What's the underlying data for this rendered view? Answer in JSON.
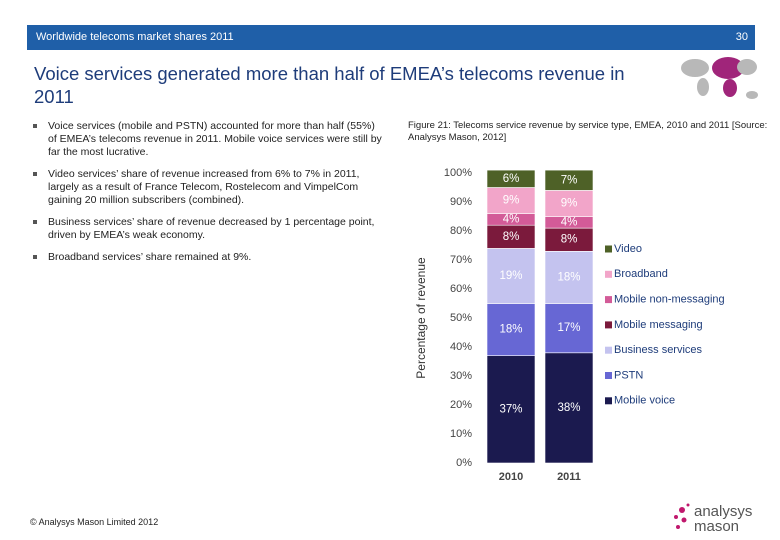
{
  "header": {
    "section": "Worldwide telecoms market shares 2011",
    "page_number": "30"
  },
  "title": "Voice services generated more than half of EMEA’s telecoms revenue in 2011",
  "bullets": [
    "Voice services (mobile and PSTN) accounted for more than half (55%) of EMEA’s telecoms revenue in 2011. Mobile voice services were still by far the most lucrative.",
    "Video services’ share of revenue increased from 6% to 7% in 2011, largely as a result of France Telecom, Rostelecom and VimpelCom gaining 20 million subscribers (combined).",
    "Business services’ share of revenue decreased by 1 percentage point, driven by EMEA’s weak economy.",
    "Broadband services’ share remained at 9%."
  ],
  "figure_caption": "Figure 21: Telecoms service revenue by service type, EMEA, 2010 and 2011 [Source: Analysys Mason, 2012]",
  "footer": "© Analysys Mason Limited 2012",
  "logo": {
    "line1": "analysys",
    "line2": "mason"
  },
  "chart_data": {
    "type": "stacked_bar",
    "ylabel": "Percentage of revenue",
    "categories": [
      "2010",
      "2011"
    ],
    "series": [
      {
        "name": "Mobile voice",
        "color": "#1b1a4f",
        "values": [
          37,
          38
        ],
        "value_labels": [
          "37%",
          "38%"
        ]
      },
      {
        "name": "PSTN",
        "color": "#6767d4",
        "values": [
          18,
          17
        ],
        "value_labels": [
          "18%",
          "17%"
        ]
      },
      {
        "name": "Business services",
        "color": "#c4c3ef",
        "values": [
          19,
          18
        ],
        "value_labels": [
          "19%",
          "18%"
        ]
      },
      {
        "name": "Mobile messaging",
        "color": "#7b1a3c",
        "values": [
          8,
          8
        ],
        "value_labels": [
          "8%",
          "8%"
        ]
      },
      {
        "name": "Mobile non-messaging",
        "color": "#d35b98",
        "values": [
          4,
          4
        ],
        "value_labels": [
          "4%",
          "4%"
        ]
      },
      {
        "name": "Broadband",
        "color": "#f2a5c9",
        "values": [
          9,
          9
        ],
        "value_labels": [
          "9%",
          "9%"
        ]
      },
      {
        "name": "Video",
        "color": "#4e6127",
        "values": [
          6,
          7
        ],
        "value_labels": [
          "6%",
          "7%"
        ]
      }
    ],
    "ylim": [
      0,
      100
    ],
    "yticks": [
      {
        "value": 0,
        "label": "0%"
      },
      {
        "value": 10,
        "label": "10%"
      },
      {
        "value": 20,
        "label": "20%"
      },
      {
        "value": 30,
        "label": "30%"
      },
      {
        "value": 40,
        "label": "40%"
      },
      {
        "value": 50,
        "label": "50%"
      },
      {
        "value": 60,
        "label": "60%"
      },
      {
        "value": 70,
        "label": "70%"
      },
      {
        "value": 80,
        "label": "80%"
      },
      {
        "value": 90,
        "label": "90%"
      },
      {
        "value": 100,
        "label": "100%"
      }
    ],
    "legend": "right",
    "grid": false
  }
}
